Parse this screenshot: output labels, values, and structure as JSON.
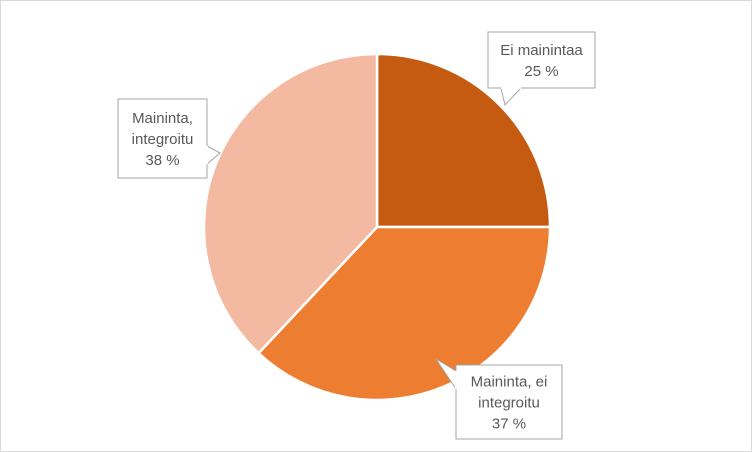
{
  "chart_data": {
    "type": "pie",
    "title": "",
    "slices": [
      {
        "label": [
          "Ei mainintaa"
        ],
        "value": 25,
        "value_label": "25 %",
        "color": "#c55a11"
      },
      {
        "label": [
          "Maininta, ei",
          "integroitu"
        ],
        "value": 37,
        "value_label": "37 %",
        "color": "#ed7d31"
      },
      {
        "label": [
          "Maininta,",
          "integroitu"
        ],
        "value": 38,
        "value_label": "38 %",
        "color": "#f4b9a1"
      }
    ],
    "start_angle_deg": 0,
    "direction": "clockwise",
    "legend": "none",
    "data_labels": "callouts"
  },
  "colors": {
    "callout_border": "#a6a6a6",
    "callout_text": "#595959",
    "slice_separator": "#ffffff",
    "frame_border": "#d9d9d9"
  }
}
